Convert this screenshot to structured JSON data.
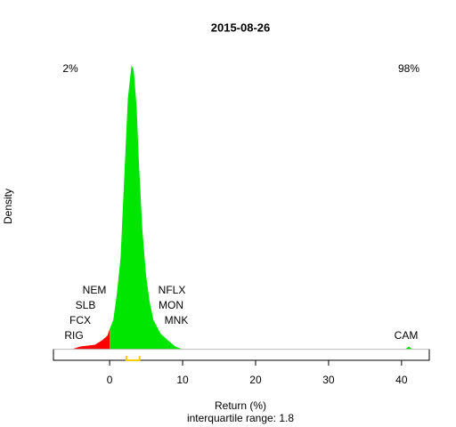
{
  "chart_data": {
    "type": "density",
    "title": "2015-08-26",
    "y_label": "Density",
    "x_label": "Return (%)",
    "subtitle": "interquartile range: 1.8",
    "left_share": "2%",
    "right_share": "98%",
    "left_color": "#ff0000",
    "right_color": "#00a000",
    "fill_negative": "#ff0000",
    "fill_positive": "#00e600",
    "x": [
      -5.2,
      -4,
      -2,
      -1,
      -0.3,
      0,
      0.5,
      1,
      1.5,
      2,
      2.5,
      3,
      3.3,
      3.7,
      4,
      4.5,
      5,
      5.5,
      6,
      7,
      8,
      9,
      10,
      40.5,
      41,
      41.5
    ],
    "values": [
      0,
      0.003,
      0.005,
      0.01,
      0.015,
      0.022,
      0.032,
      0.061,
      0.1,
      0.187,
      0.274,
      0.31,
      0.305,
      0.264,
      0.206,
      0.129,
      0.08,
      0.051,
      0.032,
      0.017,
      0.0097,
      0.003,
      0,
      0,
      0.003,
      0
    ],
    "quartiles": [
      2.3,
      4.1
    ],
    "quartile_color": "#ffcc00",
    "annotations": [
      "NEM",
      "SLB",
      "FCX",
      "RIG",
      "NFLX",
      "MON",
      "MNK",
      "CAM"
    ],
    "xlim": [
      -7.7,
      43.8
    ],
    "ylim": [
      -0.012,
      0.323
    ],
    "xticks": [
      0,
      10,
      20,
      30,
      40
    ]
  }
}
